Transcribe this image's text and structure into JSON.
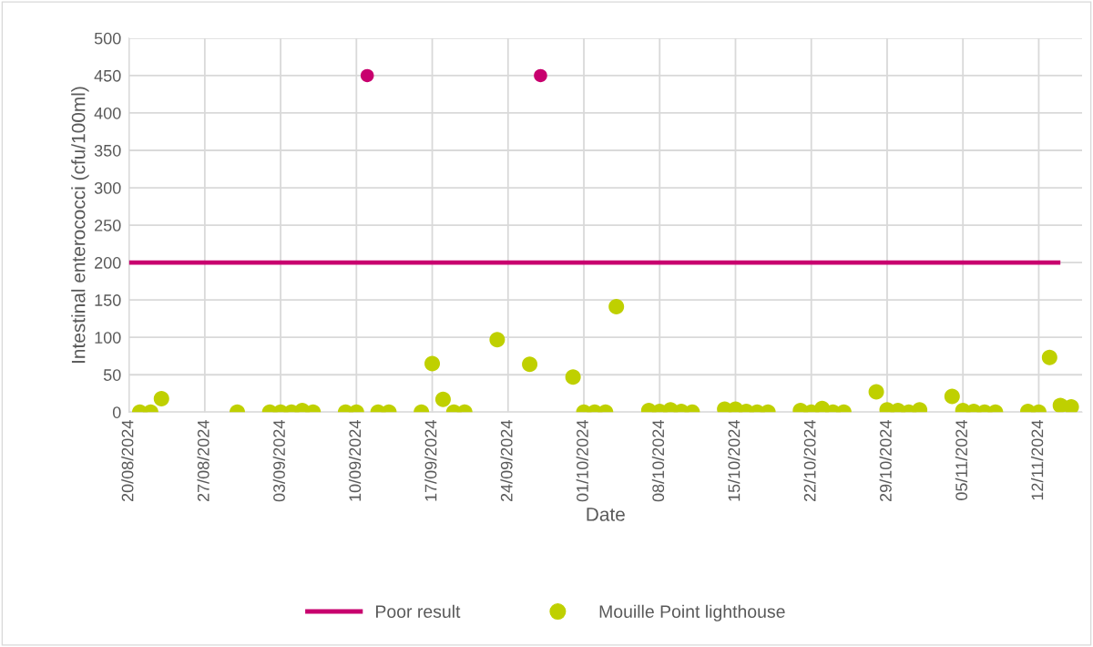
{
  "chart_data": {
    "type": "scatter",
    "xlabel": "Date",
    "ylabel": "Intestinal enterococci (cfu/100ml)",
    "xlim": [
      "2024-08-20",
      "2024-11-16"
    ],
    "ylim": [
      0,
      500
    ],
    "yticks": [
      0,
      50,
      100,
      150,
      200,
      250,
      300,
      350,
      400,
      450,
      500
    ],
    "xticks": [
      {
        "value": "2024-08-20",
        "label": "20/08/2024"
      },
      {
        "value": "2024-08-27",
        "label": "27/08/2024"
      },
      {
        "value": "2024-09-03",
        "label": "03/09/2024"
      },
      {
        "value": "2024-09-10",
        "label": "10/09/2024"
      },
      {
        "value": "2024-09-17",
        "label": "17/09/2024"
      },
      {
        "value": "2024-09-24",
        "label": "24/09/2024"
      },
      {
        "value": "2024-10-01",
        "label": "01/10/2024"
      },
      {
        "value": "2024-10-08",
        "label": "08/10/2024"
      },
      {
        "value": "2024-10-15",
        "label": "15/10/2024"
      },
      {
        "value": "2024-10-22",
        "label": "22/10/2024"
      },
      {
        "value": "2024-10-29",
        "label": "29/10/2024"
      },
      {
        "value": "2024-11-05",
        "label": "05/11/2024"
      },
      {
        "value": "2024-11-12",
        "label": "12/11/2024"
      }
    ],
    "grid": true,
    "legend": "bottom",
    "marker": "circle",
    "series": [
      {
        "name": "Poor result",
        "type": "line",
        "marker": "none",
        "color": "#c8006e",
        "x": [
          "2024-08-20",
          "2024-11-14"
        ],
        "values": [
          200,
          200
        ]
      },
      {
        "color": "#c8006e",
        "x": [
          "2024-09-11",
          "2024-09-27"
        ],
        "values": [
          450,
          450
        ]
      },
      {
        "name": "Mouille Point lighthouse",
        "color": "#bfd000",
        "x": [
          "2024-08-21",
          "2024-08-22",
          "2024-08-23",
          "2024-08-30",
          "2024-09-02",
          "2024-09-03",
          "2024-09-04",
          "2024-09-05",
          "2024-09-06",
          "2024-09-09",
          "2024-09-10",
          "2024-09-12",
          "2024-09-13",
          "2024-09-16",
          "2024-09-17",
          "2024-09-18",
          "2024-09-19",
          "2024-09-20",
          "2024-09-23",
          "2024-09-26",
          "2024-09-30",
          "2024-10-01",
          "2024-10-02",
          "2024-10-03",
          "2024-10-04",
          "2024-10-07",
          "2024-10-08",
          "2024-10-09",
          "2024-10-10",
          "2024-10-11",
          "2024-10-14",
          "2024-10-15",
          "2024-10-16",
          "2024-10-17",
          "2024-10-18",
          "2024-10-21",
          "2024-10-22",
          "2024-10-23",
          "2024-10-24",
          "2024-10-25",
          "2024-10-28",
          "2024-10-29",
          "2024-10-30",
          "2024-10-31",
          "2024-11-01",
          "2024-11-04",
          "2024-11-05",
          "2024-11-06",
          "2024-11-07",
          "2024-11-08",
          "2024-11-11",
          "2024-11-12",
          "2024-11-13",
          "2024-11-14",
          "2024-11-15"
        ],
        "values": [
          0,
          0,
          18,
          0,
          0,
          0,
          0,
          2,
          0,
          0,
          0,
          0,
          0,
          0,
          65,
          17,
          0,
          0,
          97,
          64,
          47,
          0,
          0,
          0,
          141,
          2,
          1,
          3,
          1,
          0,
          4,
          4,
          1,
          0,
          0,
          2,
          0,
          5,
          0,
          0,
          27,
          3,
          2,
          0,
          3,
          21,
          2,
          1,
          0,
          0,
          1,
          0,
          73,
          9,
          7
        ]
      }
    ]
  }
}
